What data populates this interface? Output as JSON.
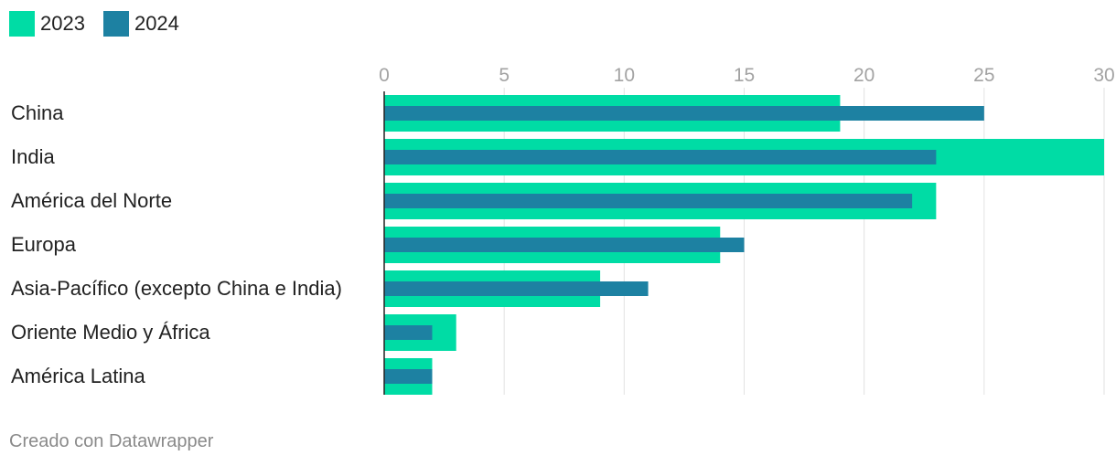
{
  "chart_data": {
    "type": "bar",
    "orientation": "horizontal",
    "categories": [
      "China",
      "India",
      "América del Norte",
      "Europa",
      "Asia-Pacífico (excepto China e India)",
      "Oriente Medio y África",
      "América Latina"
    ],
    "series": [
      {
        "name": "2023",
        "color": "#00dca5",
        "values": [
          19,
          30,
          23,
          14,
          9,
          3,
          2
        ]
      },
      {
        "name": "2024",
        "color": "#1d81a2",
        "values": [
          25,
          23,
          22,
          15,
          11,
          2,
          2
        ]
      }
    ],
    "xlim": [
      0,
      30
    ],
    "xticks": [
      0,
      5,
      10,
      15,
      20,
      25,
      30
    ],
    "grid": true,
    "legend": "top-left",
    "title": "",
    "xlabel": "",
    "ylabel": ""
  },
  "legend": {
    "items": [
      {
        "label": "2023",
        "color": "#00dca5"
      },
      {
        "label": "2024",
        "color": "#1d81a2"
      }
    ]
  },
  "footer": {
    "credit": "Creado con Datawrapper"
  }
}
